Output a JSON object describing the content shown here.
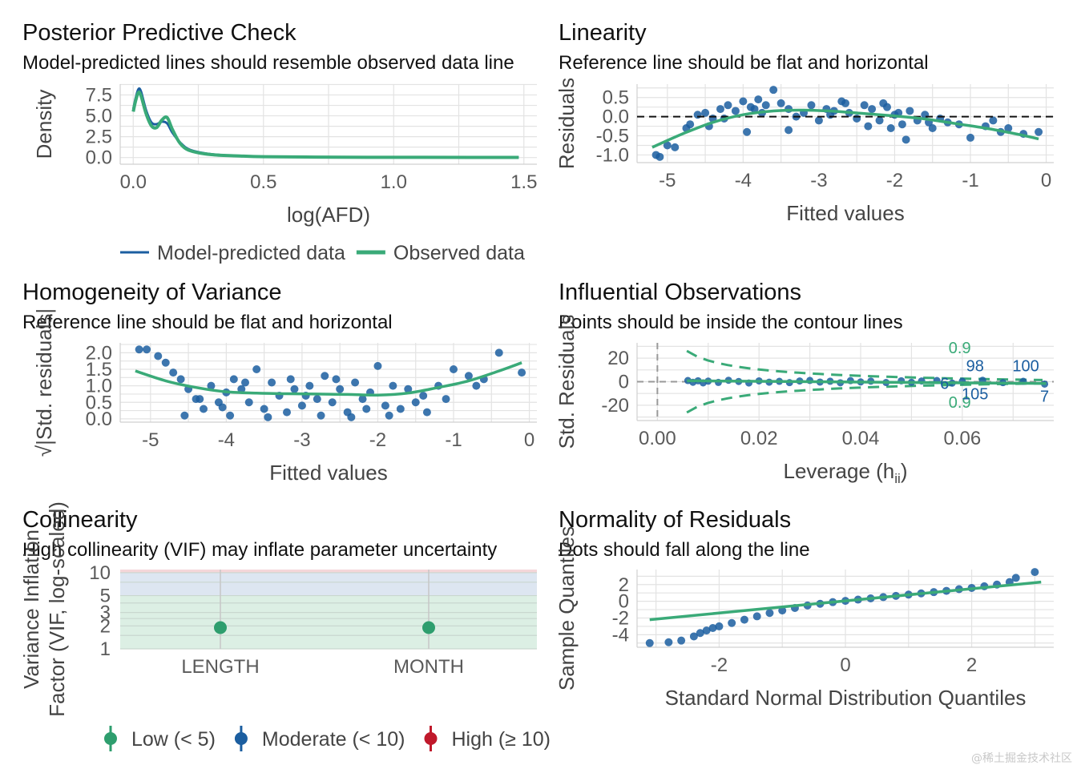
{
  "watermark": "@稀土掘金技术社区",
  "chart_data": [
    {
      "id": "ppc",
      "type": "line",
      "title": "Posterior Predictive Check",
      "subtitle": "Model-predicted lines should resemble observed data line",
      "xlabel": "log(AFD)",
      "ylabel": "Density",
      "xlim": [
        -0.05,
        1.55
      ],
      "ylim": [
        -0.8,
        8.8
      ],
      "xticks": [
        {
          "v": 0,
          "l": "0.0"
        },
        {
          "v": 0.5,
          "l": "0.5"
        },
        {
          "v": 1.0,
          "l": "1.0"
        },
        {
          "v": 1.5,
          "l": "1.5"
        }
      ],
      "yticks": [
        {
          "v": 0,
          "l": "0.0"
        },
        {
          "v": 2.5,
          "l": "2.5"
        },
        {
          "v": 5.0,
          "l": "5.0"
        },
        {
          "v": 7.5,
          "l": "7.5"
        }
      ],
      "legend": [
        {
          "label": "Model-predicted data",
          "color": "#1b5ea0"
        },
        {
          "label": "Observed data",
          "color": "#3aaa78"
        }
      ],
      "series": [
        {
          "name": "Model-predicted data",
          "color": "#1b5ea0",
          "x": [
            0,
            0.01,
            0.02,
            0.03,
            0.05,
            0.07,
            0.09,
            0.11,
            0.13,
            0.15,
            0.18,
            0.22,
            0.3,
            0.4,
            0.5,
            0.7,
            1.0,
            1.3,
            1.48
          ],
          "y": [
            5.8,
            7.2,
            8.2,
            7.9,
            5.6,
            4.2,
            4.0,
            4.3,
            4.1,
            3.0,
            1.8,
            0.9,
            0.4,
            0.2,
            0.1,
            0.05,
            0.03,
            0.02,
            0.02
          ]
        },
        {
          "name": "Observed data",
          "color": "#3aaa78",
          "x": [
            0,
            0.01,
            0.02,
            0.03,
            0.05,
            0.07,
            0.09,
            0.11,
            0.13,
            0.15,
            0.18,
            0.22,
            0.3,
            0.4,
            0.5,
            0.7,
            1.0,
            1.3,
            1.48
          ],
          "y": [
            5.5,
            6.9,
            7.8,
            7.4,
            5.2,
            3.8,
            3.6,
            4.5,
            4.8,
            3.4,
            1.7,
            0.8,
            0.35,
            0.2,
            0.1,
            0.05,
            0.03,
            0.02,
            0.02
          ]
        }
      ]
    },
    {
      "id": "lin",
      "type": "scatter",
      "title": "Linearity",
      "subtitle": "Reference line should be flat and horizontal",
      "xlabel": "Fitted values",
      "ylabel": "Residuals",
      "xlim": [
        -5.4,
        0.1
      ],
      "ylim": [
        -1.2,
        0.85
      ],
      "xticks": [
        {
          "v": -5,
          "l": "-5"
        },
        {
          "v": -4,
          "l": "-4"
        },
        {
          "v": -3,
          "l": "-3"
        },
        {
          "v": -2,
          "l": "-2"
        },
        {
          "v": -1,
          "l": "-1"
        },
        {
          "v": 0,
          "l": "0"
        }
      ],
      "yticks": [
        {
          "v": -1.0,
          "l": "-1.0"
        },
        {
          "v": -0.5,
          "l": "-0.5"
        },
        {
          "v": 0,
          "l": "0.0"
        },
        {
          "v": 0.5,
          "l": "0.5"
        }
      ],
      "refline": 0,
      "smooth": {
        "x": [
          -5.2,
          -4.8,
          -4.4,
          -4.0,
          -3.6,
          -3.2,
          -2.8,
          -2.4,
          -2.0,
          -1.6,
          -1.2,
          -0.8,
          -0.4,
          -0.1
        ],
        "y": [
          -0.8,
          -0.45,
          -0.15,
          0.05,
          0.15,
          0.17,
          0.14,
          0.08,
          0.02,
          -0.06,
          -0.18,
          -0.3,
          -0.45,
          -0.58
        ]
      },
      "points": [
        [
          -5.15,
          -1.0
        ],
        [
          -5.1,
          -1.05
        ],
        [
          -5.0,
          -0.75
        ],
        [
          -4.9,
          -0.8
        ],
        [
          -4.75,
          -0.3
        ],
        [
          -4.7,
          -0.2
        ],
        [
          -4.6,
          0.05
        ],
        [
          -4.5,
          0.1
        ],
        [
          -4.4,
          -0.05
        ],
        [
          -4.3,
          0.2
        ],
        [
          -4.2,
          0.3
        ],
        [
          -4.1,
          0.15
        ],
        [
          -4.0,
          0.4
        ],
        [
          -3.9,
          0.25
        ],
        [
          -3.8,
          0.45
        ],
        [
          -3.7,
          0.3
        ],
        [
          -3.6,
          0.7
        ],
        [
          -3.5,
          0.35
        ],
        [
          -3.4,
          0.2
        ],
        [
          -3.3,
          0.0
        ],
        [
          -3.2,
          0.1
        ],
        [
          -3.1,
          0.3
        ],
        [
          -3.0,
          -0.1
        ],
        [
          -2.9,
          0.2
        ],
        [
          -2.8,
          0.15
        ],
        [
          -2.7,
          0.4
        ],
        [
          -2.6,
          0.1
        ],
        [
          -2.5,
          -0.05
        ],
        [
          -2.4,
          0.3
        ],
        [
          -2.3,
          0.2
        ],
        [
          -2.2,
          -0.1
        ],
        [
          -2.1,
          0.25
        ],
        [
          -2.0,
          0.05
        ],
        [
          -1.9,
          -0.2
        ],
        [
          -1.8,
          0.15
        ],
        [
          -1.7,
          -0.1
        ],
        [
          -1.6,
          0.05
        ],
        [
          -1.5,
          -0.3
        ],
        [
          -1.4,
          -0.05
        ],
        [
          -1.3,
          -0.15
        ],
        [
          -1.0,
          -0.55
        ],
        [
          -0.8,
          -0.25
        ],
        [
          -0.6,
          -0.4
        ],
        [
          -0.5,
          -0.3
        ],
        [
          -0.3,
          -0.45
        ],
        [
          -0.1,
          -0.4
        ],
        [
          -3.95,
          -0.4
        ],
        [
          -3.4,
          -0.35
        ],
        [
          -2.35,
          -0.25
        ],
        [
          -1.85,
          -0.6
        ],
        [
          -4.45,
          -0.25
        ],
        [
          -2.65,
          0.35
        ],
        [
          -3.75,
          0.1
        ],
        [
          -2.05,
          -0.3
        ],
        [
          -1.15,
          -0.2
        ],
        [
          -0.7,
          -0.1
        ],
        [
          -4.25,
          -0.05
        ],
        [
          -3.85,
          0.2
        ],
        [
          -2.85,
          0.05
        ],
        [
          -2.15,
          0.35
        ],
        [
          -1.95,
          0.1
        ],
        [
          -1.55,
          -0.15
        ]
      ]
    },
    {
      "id": "hov",
      "type": "scatter",
      "title": "Homogeneity of Variance",
      "subtitle": "Reference line should be flat and horizontal",
      "xlabel": "Fitted values",
      "ylabel": "√|Std. residuals|",
      "xlim": [
        -5.4,
        0.1
      ],
      "ylim": [
        -0.1,
        2.3
      ],
      "xticks": [
        {
          "v": -5,
          "l": "-5"
        },
        {
          "v": -4,
          "l": "-4"
        },
        {
          "v": -3,
          "l": "-3"
        },
        {
          "v": -2,
          "l": "-2"
        },
        {
          "v": -1,
          "l": "-1"
        },
        {
          "v": 0,
          "l": "0"
        }
      ],
      "yticks": [
        {
          "v": 0,
          "l": "0.0"
        },
        {
          "v": 0.5,
          "l": "0.5"
        },
        {
          "v": 1.0,
          "l": "1.0"
        },
        {
          "v": 1.5,
          "l": "1.5"
        },
        {
          "v": 2.0,
          "l": "2.0"
        }
      ],
      "smooth": {
        "x": [
          -5.2,
          -4.8,
          -4.4,
          -4.0,
          -3.6,
          -3.2,
          -2.8,
          -2.4,
          -2.0,
          -1.6,
          -1.2,
          -0.8,
          -0.4,
          -0.1
        ],
        "y": [
          1.45,
          1.15,
          0.95,
          0.82,
          0.78,
          0.76,
          0.75,
          0.74,
          0.72,
          0.78,
          0.95,
          1.15,
          1.45,
          1.7
        ]
      },
      "points": [
        [
          -5.15,
          2.1
        ],
        [
          -5.05,
          2.1
        ],
        [
          -4.9,
          1.9
        ],
        [
          -4.8,
          1.7
        ],
        [
          -4.7,
          1.4
        ],
        [
          -4.6,
          1.2
        ],
        [
          -4.5,
          0.9
        ],
        [
          -4.4,
          0.6
        ],
        [
          -4.3,
          0.3
        ],
        [
          -4.2,
          1.0
        ],
        [
          -4.1,
          0.5
        ],
        [
          -4.0,
          0.8
        ],
        [
          -3.9,
          1.2
        ],
        [
          -3.8,
          0.9
        ],
        [
          -3.7,
          0.5
        ],
        [
          -3.6,
          1.5
        ],
        [
          -3.5,
          0.3
        ],
        [
          -3.4,
          1.1
        ],
        [
          -3.3,
          0.7
        ],
        [
          -3.2,
          0.2
        ],
        [
          -3.1,
          0.9
        ],
        [
          -3.0,
          0.4
        ],
        [
          -2.9,
          1.0
        ],
        [
          -2.8,
          0.6
        ],
        [
          -2.7,
          1.3
        ],
        [
          -2.6,
          0.5
        ],
        [
          -2.5,
          0.9
        ],
        [
          -2.4,
          0.2
        ],
        [
          -2.3,
          1.1
        ],
        [
          -2.2,
          0.6
        ],
        [
          -2.1,
          0.8
        ],
        [
          -2.0,
          1.6
        ],
        [
          -1.9,
          0.4
        ],
        [
          -1.8,
          1.0
        ],
        [
          -1.7,
          0.3
        ],
        [
          -1.6,
          0.9
        ],
        [
          -1.5,
          0.5
        ],
        [
          -1.4,
          0.7
        ],
        [
          -1.2,
          1.0
        ],
        [
          -1.1,
          0.6
        ],
        [
          -1.0,
          1.5
        ],
        [
          -0.8,
          1.3
        ],
        [
          -0.6,
          1.2
        ],
        [
          -0.4,
          2.0
        ],
        [
          -0.1,
          1.4
        ],
        [
          -4.55,
          0.1
        ],
        [
          -3.95,
          0.1
        ],
        [
          -3.45,
          0.05
        ],
        [
          -2.75,
          0.1
        ],
        [
          -2.35,
          0.05
        ],
        [
          -1.85,
          0.1
        ],
        [
          -4.35,
          0.6
        ],
        [
          -3.75,
          1.1
        ],
        [
          -2.95,
          0.7
        ],
        [
          -2.15,
          0.3
        ],
        [
          -1.35,
          0.2
        ],
        [
          -0.7,
          1.0
        ],
        [
          -4.05,
          0.35
        ],
        [
          -3.15,
          1.2
        ],
        [
          -2.55,
          1.2
        ]
      ]
    },
    {
      "id": "infl",
      "type": "scatter",
      "title": "Influential Observations",
      "subtitle": "Points should be inside the contour lines",
      "xlabel": "Leverage (h",
      "xlabel_sub": "ii",
      "xlabel_end": ")",
      "ylabel": "Std. Residuals",
      "xlim": [
        -0.004,
        0.078
      ],
      "ylim": [
        -33,
        33
      ],
      "xticks": [
        {
          "v": 0,
          "l": "0.00"
        },
        {
          "v": 0.02,
          "l": "0.02"
        },
        {
          "v": 0.04,
          "l": "0.04"
        },
        {
          "v": 0.06,
          "l": "0.06"
        }
      ],
      "yticks": [
        {
          "v": -20,
          "l": "-20"
        },
        {
          "v": 0,
          "l": "0"
        },
        {
          "v": 20,
          "l": "20"
        }
      ],
      "contour_label": "0.9",
      "labels": [
        {
          "x": 0.0625,
          "y": 9,
          "t": "98"
        },
        {
          "x": 0.0725,
          "y": 9,
          "t": "100"
        },
        {
          "x": 0.0565,
          "y": -6,
          "t": "6"
        },
        {
          "x": 0.0625,
          "y": -15,
          "t": "105"
        },
        {
          "x": 0.0762,
          "y": -17,
          "t": "7"
        }
      ],
      "points": [
        [
          0.006,
          1
        ],
        [
          0.007,
          -0.5
        ],
        [
          0.008,
          0.8
        ],
        [
          0.009,
          -1
        ],
        [
          0.01,
          0.5
        ],
        [
          0.012,
          -0.6
        ],
        [
          0.014,
          1.2
        ],
        [
          0.016,
          0.2
        ],
        [
          0.018,
          -1.1
        ],
        [
          0.02,
          0.7
        ],
        [
          0.022,
          -0.4
        ],
        [
          0.024,
          0.3
        ],
        [
          0.026,
          -0.8
        ],
        [
          0.028,
          0.6
        ],
        [
          0.03,
          1.1
        ],
        [
          0.032,
          -0.3
        ],
        [
          0.034,
          0.4
        ],
        [
          0.036,
          -0.9
        ],
        [
          0.038,
          0.9
        ],
        [
          0.04,
          -0.2
        ],
        [
          0.042,
          0.5
        ],
        [
          0.045,
          -0.7
        ],
        [
          0.048,
          0.8
        ],
        [
          0.05,
          -0.5
        ],
        [
          0.052,
          0.6
        ],
        [
          0.055,
          1
        ],
        [
          0.058,
          -1.2
        ],
        [
          0.06,
          0.4
        ],
        [
          0.064,
          1.2
        ],
        [
          0.068,
          -0.8
        ],
        [
          0.072,
          0.3
        ],
        [
          0.0762,
          -2
        ]
      ]
    },
    {
      "id": "col",
      "type": "scatter",
      "title": "Collinearity",
      "subtitle": "High collinearity (VIF) may inflate parameter uncertainty",
      "ylabel": "Variance Inflation\nFactor (VIF, log-scaled)",
      "categories": [
        "LENGTH",
        "MONTH"
      ],
      "values": [
        1.9,
        1.9
      ],
      "yticks": [
        {
          "v": 1,
          "l": "1"
        },
        {
          "v": 2,
          "l": "2"
        },
        {
          "v": 3,
          "l": "3"
        },
        {
          "v": 5,
          "l": "5"
        },
        {
          "v": 10,
          "l": "10"
        }
      ],
      "ylim": [
        1,
        11
      ],
      "legend": [
        {
          "label": "Low (< 5)",
          "color": "#2e9e6e"
        },
        {
          "label": "Moderate (< 10)",
          "color": "#1b5ea0"
        },
        {
          "label": "High (≥ 10)",
          "color": "#c0192b"
        }
      ]
    },
    {
      "id": "qq",
      "type": "scatter",
      "title": "Normality of Residuals",
      "subtitle": "Dots should fall along the line",
      "xlabel": "Standard Normal Distribution Quantiles",
      "ylabel": "Sample Quantiles",
      "xlim": [
        -3.3,
        3.3
      ],
      "ylim": [
        -5.5,
        3.8
      ],
      "xticks": [
        {
          "v": -2,
          "l": "-2"
        },
        {
          "v": 0,
          "l": "0"
        },
        {
          "v": 2,
          "l": "2"
        }
      ],
      "yticks": [
        {
          "v": -4,
          "l": "-4"
        },
        {
          "v": -2,
          "l": "-2"
        },
        {
          "v": 0,
          "l": "0"
        },
        {
          "v": 2,
          "l": "2"
        }
      ],
      "ref": [
        [
          -3.1,
          -2.2
        ],
        [
          3.1,
          2.3
        ]
      ],
      "points": [
        [
          -3.1,
          -5.0
        ],
        [
          -2.8,
          -4.9
        ],
        [
          -2.6,
          -4.7
        ],
        [
          -2.4,
          -4.2
        ],
        [
          -2.3,
          -3.8
        ],
        [
          -2.2,
          -3.5
        ],
        [
          -2.1,
          -3.2
        ],
        [
          -2.0,
          -3.0
        ],
        [
          -1.8,
          -2.6
        ],
        [
          -1.6,
          -2.2
        ],
        [
          -1.4,
          -1.8
        ],
        [
          -1.2,
          -1.4
        ],
        [
          -1.0,
          -1.1
        ],
        [
          -0.8,
          -0.8
        ],
        [
          -0.6,
          -0.5
        ],
        [
          -0.4,
          -0.3
        ],
        [
          -0.2,
          -0.1
        ],
        [
          0,
          0.05
        ],
        [
          0.2,
          0.2
        ],
        [
          0.4,
          0.35
        ],
        [
          0.6,
          0.5
        ],
        [
          0.8,
          0.65
        ],
        [
          1.0,
          0.8
        ],
        [
          1.2,
          0.95
        ],
        [
          1.4,
          1.1
        ],
        [
          1.6,
          1.25
        ],
        [
          1.8,
          1.45
        ],
        [
          2.0,
          1.6
        ],
        [
          2.2,
          1.8
        ],
        [
          2.4,
          2.0
        ],
        [
          2.6,
          2.3
        ],
        [
          2.7,
          2.8
        ],
        [
          3.0,
          3.5
        ]
      ]
    }
  ]
}
